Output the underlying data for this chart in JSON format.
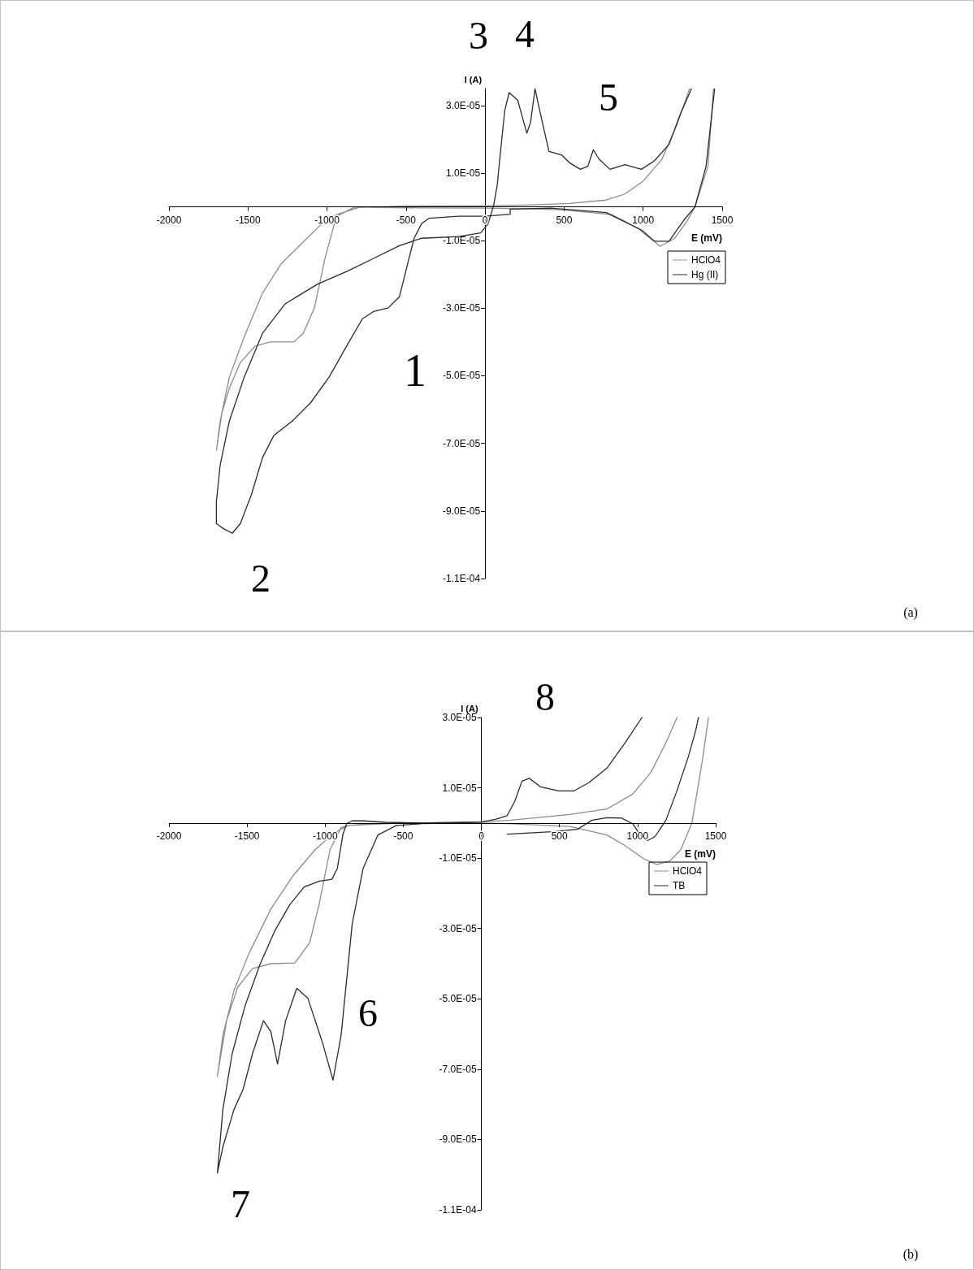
{
  "chart_data": [
    {
      "type": "line",
      "xlabel": "E (mV)",
      "ylabel": "I (A)",
      "xlim": [
        -2000,
        1500
      ],
      "xticks": [
        -2000,
        -1500,
        -1000,
        -500,
        0,
        500,
        1000,
        1500
      ],
      "ylim": [
        -0.00011,
        3.5e-05
      ],
      "yticks": [
        {
          "value": -0.00011,
          "label": "-1.1E-04"
        },
        {
          "value": -9e-05,
          "label": "-9.0E-05"
        },
        {
          "value": -7e-05,
          "label": "-7.0E-05"
        },
        {
          "value": -5e-05,
          "label": "-5.0E-05"
        },
        {
          "value": -3e-05,
          "label": "-3.0E-05"
        },
        {
          "value": -1e-05,
          "label": "-1.0E-05"
        },
        {
          "value": 1e-05,
          "label": "1.0E-05"
        },
        {
          "value": 3e-05,
          "label": "3.0E-05"
        }
      ],
      "legend": "right",
      "marker": "none",
      "grid": false,
      "annotations": [
        "3",
        "4",
        "5",
        "1",
        "2",
        "(a)"
      ],
      "series": [
        {
          "name": "HClO4",
          "color": "#8c8c8c",
          "x": [
            1445,
            1410,
            1328,
            1281,
            1200,
            1106,
            1000,
            800,
            500,
            300,
            150,
            0,
            -400,
            -700,
            -823,
            -940,
            -1010,
            -1080,
            -1150,
            -1209,
            -1361,
            -1454,
            -1548,
            -1618,
            -1665,
            -1700,
            -1676,
            -1618,
            -1524,
            -1408,
            -1291,
            -1150,
            -1033,
            -940,
            -800,
            -500,
            0,
            300,
            533,
            767,
            884,
            1000,
            1118,
            1211,
            1293
          ],
          "values": [
            3.49e-05,
            1.2e-05,
            0,
            -4e-06,
            -9.3e-06,
            -1.17e-05,
            -7.1e-06,
            -2.3e-06,
            -9e-07,
            -6e-07,
            -5e-07,
            -4e-07,
            -3e-07,
            -2e-07,
            0,
            -2.8e-06,
            -1.47e-05,
            -2.99e-05,
            -3.74e-05,
            -4e-05,
            -4e-05,
            -4.12e-05,
            -4.6e-05,
            -5.37e-05,
            -6.1e-05,
            -7.2e-05,
            -6.34e-05,
            -5.04e-05,
            -3.85e-05,
            -2.55e-05,
            -1.69e-05,
            -1.04e-05,
            -5e-06,
            -2.3e-06,
            -2e-07,
            2e-07,
            3e-07,
            6e-07,
            1e-06,
            2e-06,
            3.8e-06,
            7.6e-06,
            1.4e-05,
            2.4e-05,
            3.49e-05
          ]
        },
        {
          "name": "Hg (II)",
          "color": "#2b2b2b",
          "x": [
            1452,
            1398,
            1328,
            1258,
            1164,
            1071,
            977,
            767,
            416,
            159,
            159,
            0,
            -168,
            -355,
            -402,
            -449,
            -496,
            -542,
            -613,
            -706,
            -776,
            -870,
            -987,
            -1104,
            -1220,
            -1337,
            -1408,
            -1478,
            -1548,
            -1599,
            -1653,
            -1700,
            -1700,
            -1676,
            -1618,
            -1524,
            -1408,
            -1267,
            -1174,
            -1057,
            -870,
            -729,
            -542,
            -402,
            -168,
            -28,
            19,
            54,
            77,
            100,
            124,
            152,
            206,
            264,
            288,
            316,
            346,
            404,
            486,
            533,
            603,
            650,
            685,
            720,
            790,
            884,
            989,
            1071,
            1164,
            1234,
            1305
          ],
          "values": [
            3.49e-05,
            1.2e-05,
            0,
            -3.9e-06,
            -1.02e-05,
            -1.02e-05,
            -6.6e-06,
            -1.7e-06,
            -4e-07,
            -7e-07,
            -2.2e-06,
            -2.8e-06,
            -2.8e-06,
            -3.4e-06,
            -5e-06,
            -9.3e-06,
            -1.8e-05,
            -2.66e-05,
            -2.99e-05,
            -3.1e-05,
            -3.31e-05,
            -4.07e-05,
            -5.04e-05,
            -5.8e-05,
            -6.34e-05,
            -6.77e-05,
            -7.42e-05,
            -8.51e-05,
            -9.37e-05,
            -9.66e-05,
            -9.53e-05,
            -9.37e-05,
            -8.72e-05,
            -7.64e-05,
            -6.34e-05,
            -5.04e-05,
            -3.74e-05,
            -2.88e-05,
            -2.61e-05,
            -2.28e-05,
            -1.9e-05,
            -1.58e-05,
            -1.15e-05,
            -9.3e-06,
            -8.8e-06,
            -7.7e-06,
            -5e-06,
            4e-07,
            6.5e-06,
            1.74e-05,
            2.84e-05,
            3.38e-05,
            3.16e-05,
            2.18e-05,
            2.51e-05,
            3.49e-05,
            2.84e-05,
            1.64e-05,
            1.53e-05,
            1.31e-05,
            1.11e-05,
            1.2e-05,
            1.69e-05,
            1.42e-05,
            1.11e-05,
            1.25e-05,
            1.11e-05,
            1.36e-05,
            1.85e-05,
            2.73e-05,
            3.49e-05
          ]
        }
      ]
    },
    {
      "type": "line",
      "xlabel": "E (mV)",
      "ylabel": "I (A)",
      "xlim": [
        -2000,
        1500
      ],
      "xticks": [
        -2000,
        -1500,
        -1000,
        -500,
        0,
        500,
        1000,
        1500
      ],
      "ylim": [
        -0.00011,
        3e-05
      ],
      "yticks": [
        {
          "value": -0.00011,
          "label": "-1.1E-04"
        },
        {
          "value": -9e-05,
          "label": "-9.0E-05"
        },
        {
          "value": -7e-05,
          "label": "-7.0E-05"
        },
        {
          "value": -5e-05,
          "label": "-5.0E-05"
        },
        {
          "value": -3e-05,
          "label": "-3.0E-05"
        },
        {
          "value": -1e-05,
          "label": "-1.0E-05"
        },
        {
          "value": 1e-05,
          "label": "1.0E-05"
        },
        {
          "value": 3e-05,
          "label": "3.0E-05"
        }
      ],
      "legend": "right",
      "marker": "none",
      "grid": false,
      "annotations": [
        "8",
        "6",
        "7",
        "(b)"
      ],
      "series": [
        {
          "name": "HClO4",
          "color": "#8c8c8c",
          "x": [
            1454,
            1418,
            1348,
            1277,
            1206,
            1123,
            1040,
            922,
            804,
            567,
            165,
            0,
            -500,
            -851,
            -898,
            -969,
            -1040,
            -1099,
            -1194,
            -1348,
            -1466,
            -1560,
            -1631,
            -1690,
            -1655,
            -1584,
            -1489,
            -1348,
            -1206,
            -1064,
            -946,
            -851,
            -709,
            0,
            189,
            567,
            804,
            969,
            1087,
            1182,
            1253
          ],
          "values": [
            3e-05,
            1.87e-05,
            0,
            -7.6e-06,
            -1.08e-05,
            -1.18e-05,
            -1.02e-05,
            -6.5e-06,
            -3.4e-06,
            -1e-06,
            -2e-07,
            0,
            0,
            -7e-07,
            -1.3e-06,
            -7.6e-06,
            -2.34e-05,
            -3.4e-05,
            -3.98e-05,
            -4e-05,
            -4.14e-05,
            -4.67e-05,
            -5.62e-05,
            -7.2e-05,
            -6.04e-05,
            -4.77e-05,
            -3.72e-05,
            -2.45e-05,
            -1.5e-05,
            -7.6e-06,
            -2.9e-06,
            -7e-07,
            -2e-07,
            3e-07,
            8e-07,
            2.4e-06,
            4e-06,
            8.2e-06,
            1.45e-05,
            2.29e-05,
            3e-05
          ]
        },
        {
          "name": "TB",
          "color": "#2b2b2b",
          "x": [
            165,
            449,
            615,
            709,
            804,
            898,
            969,
            1017,
            1064,
            1111,
            1182,
            1253,
            1324,
            1371,
            1390,
            1200,
            1028,
            922,
            804,
            686,
            591,
            496,
            378,
            307,
            260,
            213,
            165,
            95,
            0,
            -378,
            -615,
            -757,
            -827,
            -863,
            -887,
            -922,
            -957,
            -1040,
            -1135,
            -1229,
            -1324,
            -1418,
            -1513,
            -1596,
            -1655,
            -1690,
            -1655,
            -1584,
            -1525,
            -1466,
            -1395,
            -1348,
            -1305,
            -1253,
            -1182,
            -1111,
            -1017,
            -950,
            -898,
            -827,
            -757,
            -662,
            -544,
            -378,
            -142,
            0
          ],
          "values": [
            -3.2e-06,
            -2.5e-06,
            -1.8e-06,
            8e-07,
            1.5e-06,
            1.4e-06,
            -2e-07,
            -3.4e-06,
            -5e-06,
            -3.9e-06,
            8e-07,
            9.3e-06,
            1.87e-05,
            2.61e-05,
            3e-05,
            null,
            3e-05,
            2.29e-05,
            1.56e-05,
            1.14e-05,
            9.1e-06,
            9.1e-06,
            1.03e-05,
            1.27e-05,
            1.19e-05,
            6.1e-06,
            2.1e-06,
            1.1e-06,
            3e-07,
            0,
            2e-07,
            6e-07,
            6e-07,
            -2e-07,
            -3.4e-06,
            -1.29e-05,
            -1.6e-05,
            -1.66e-05,
            -1.82e-05,
            -2.34e-05,
            -3.08e-05,
            -4.03e-05,
            -5.2e-05,
            -6.57e-05,
            -8.15e-05,
            -9.95e-05,
            -9.21e-05,
            -8.15e-05,
            -7.57e-05,
            -6.57e-05,
            -5.62e-05,
            -5.93e-05,
            -6.85e-05,
            -5.62e-05,
            -4.7e-05,
            -4.98e-05,
            -6.25e-05,
            -7.31e-05,
            -6.04e-05,
            -2.87e-05,
            -1.29e-05,
            -3.4e-06,
            -7e-07,
            -2e-07,
            0,
            3e-07
          ]
        }
      ]
    }
  ]
}
